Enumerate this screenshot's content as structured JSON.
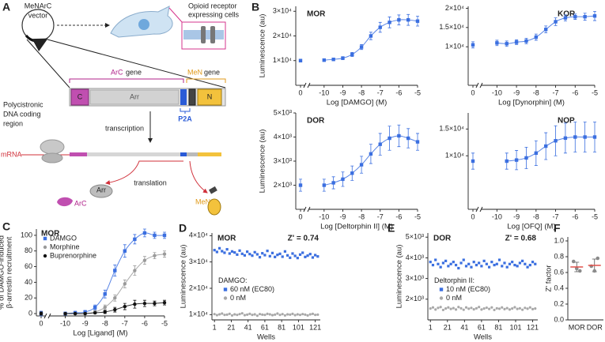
{
  "panel_labels": [
    "A",
    "B",
    "C",
    "D",
    "E",
    "F"
  ],
  "diagram": {
    "vector_label": [
      "MeNArC",
      "vector"
    ],
    "cells_label": [
      "Opioid receptor",
      "expressing cells"
    ],
    "dna_label": [
      "Polycistronic",
      "DNA coding",
      "region"
    ],
    "arc_gene": [
      "ArC",
      "gene"
    ],
    "men_gene": [
      "MeN",
      "gene"
    ],
    "segments": [
      "C",
      "Arr",
      "N"
    ],
    "p2a": "P2A",
    "transcription": "transcription",
    "mrna": "mRNA",
    "translation": "translation",
    "arr": "Arr",
    "arc": "ArC",
    "men": "MeN"
  },
  "chart_data": [
    {
      "type": "line",
      "title": "MOR",
      "xlabel": "Log [DAMGO] (M)",
      "ylabel": "Luminescence (au)",
      "x": [
        0,
        -10,
        -9.5,
        -9,
        -8.5,
        -8,
        -7.5,
        -7,
        -6.5,
        -6,
        -5.5,
        -5
      ],
      "series": [
        {
          "color": "#3b6fe0",
          "marker": "square",
          "values": [
            10000,
            10200,
            10500,
            11000,
            12500,
            15500,
            20000,
            23500,
            25500,
            26500,
            26500,
            26000
          ],
          "errors": [
            600,
            500,
            500,
            600,
            800,
            1000,
            1500,
            2000,
            2200,
            2000,
            2200,
            2000
          ]
        }
      ],
      "xlim": [
        -10.5,
        -5
      ],
      "x_break": true,
      "xticks": [
        0,
        -10,
        -9,
        -8,
        -7,
        -6,
        -5
      ],
      "ylim": [
        0,
        32000
      ],
      "yticks": [
        {
          "value": 10000,
          "label": "1×10⁴"
        },
        {
          "value": 20000,
          "label": "2×10⁴"
        },
        {
          "value": 30000,
          "label": "3×10⁴"
        }
      ]
    },
    {
      "type": "line",
      "title": "KOR",
      "xlabel": "Log [Dynorphin] (M)",
      "x": [
        0,
        -10,
        -9.5,
        -9,
        -8.5,
        -8,
        -7.5,
        -7,
        -6.5,
        -6,
        -5.5,
        -5
      ],
      "series": [
        {
          "color": "#3b6fe0",
          "marker": "square",
          "values": [
            10500,
            11000,
            10800,
            11200,
            11500,
            12500,
            14500,
            16500,
            17500,
            17800,
            17800,
            18000
          ],
          "errors": [
            800,
            700,
            700,
            600,
            700,
            800,
            900,
            1000,
            800,
            700,
            900,
            1200
          ]
        }
      ],
      "xlim": [
        -10.5,
        -5
      ],
      "x_break": true,
      "xticks": [
        0,
        -10,
        -9,
        -8,
        -7,
        -6,
        -5
      ],
      "ylim": [
        0,
        20500
      ],
      "yticks": [
        {
          "value": 10000,
          "label": "1×10⁴"
        },
        {
          "value": 15000,
          "label": "1.5×10⁴"
        },
        {
          "value": 20000,
          "label": "2×10⁴"
        }
      ]
    },
    {
      "type": "line",
      "title": "DOR",
      "xlabel": "Log [Deltorphin II] (M)",
      "ylabel": "Luminescence (au)",
      "x": [
        0,
        -10,
        -9.5,
        -9,
        -8.5,
        -8,
        -7.5,
        -7,
        -6.5,
        -6,
        -5.5,
        -5
      ],
      "series": [
        {
          "color": "#3b6fe0",
          "marker": "square",
          "values": [
            2000,
            2000,
            2100,
            2250,
            2500,
            2850,
            3300,
            3700,
            3950,
            4050,
            3950,
            3800
          ],
          "errors": [
            250,
            250,
            250,
            300,
            300,
            350,
            400,
            450,
            500,
            450,
            400,
            350
          ]
        }
      ],
      "xlim": [
        -10.5,
        -5
      ],
      "x_break": true,
      "xticks": [
        0,
        -10,
        -9,
        -8,
        -7,
        -6,
        -5
      ],
      "ylim": [
        1000,
        5000
      ],
      "yticks": [
        {
          "value": 2000,
          "label": "2×10³"
        },
        {
          "value": 3000,
          "label": "3×10³"
        },
        {
          "value": 4000,
          "label": "4×10³"
        },
        {
          "value": 5000,
          "label": "5×10³"
        }
      ]
    },
    {
      "type": "line",
      "title": "NOP",
      "xlabel": "Log [OFQ] (M)",
      "x": [
        0,
        -9.5,
        -9,
        -8.5,
        -8,
        -7.5,
        -7,
        -6.5,
        -6,
        -5.5,
        -5
      ],
      "series": [
        {
          "color": "#3b6fe0",
          "marker": "square",
          "values": [
            9000,
            9000,
            9200,
            9600,
            10500,
            11800,
            12800,
            13300,
            13500,
            13500,
            13500
          ],
          "errors": [
            1500,
            1500,
            1800,
            2000,
            2300,
            2500,
            2800,
            2800,
            2800,
            2800,
            2800
          ]
        }
      ],
      "xlim": [
        -10.5,
        -5
      ],
      "x_break": true,
      "xticks": [
        0,
        -10,
        -9,
        -8,
        -7,
        -6,
        -5
      ],
      "ylim": [
        0,
        18000
      ],
      "yticks": [
        {
          "value": 10000,
          "label": "1×10⁴"
        },
        {
          "value": 15000,
          "label": "1.5×10⁴"
        }
      ]
    },
    {
      "type": "line",
      "title": "MOR",
      "xlabel": "Log [Ligand] (M)",
      "ylabel": [
        "% of DAMGO-induced",
        "β-arrestin recruitment"
      ],
      "legend": "upper left",
      "x": [
        0,
        -10,
        -9.5,
        -9,
        -8.5,
        -8,
        -7.5,
        -7,
        -6.5,
        -6,
        -5.5,
        -5
      ],
      "series": [
        {
          "name": "DAMGO",
          "color": "#3b6fe0",
          "marker": "square",
          "values": [
            0,
            0,
            1,
            2,
            8,
            25,
            55,
            80,
            95,
            103,
            100,
            100
          ],
          "errors": [
            3,
            2,
            2,
            2,
            3,
            5,
            7,
            8,
            6,
            5,
            4,
            4
          ]
        },
        {
          "name": "Morphine",
          "color": "#9a9a9a",
          "marker": "circle",
          "values": [
            0,
            0,
            0,
            0,
            2,
            8,
            20,
            38,
            55,
            68,
            74,
            76
          ],
          "errors": [
            2,
            1,
            1,
            1,
            2,
            3,
            4,
            5,
            6,
            5,
            4,
            4
          ]
        },
        {
          "name": "Buprenorphine",
          "color": "#111111",
          "marker": "circle",
          "values": [
            0,
            0,
            0,
            0,
            1,
            2,
            5,
            9,
            12,
            13,
            13,
            14
          ],
          "errors": [
            2,
            1,
            1,
            1,
            1,
            2,
            3,
            4,
            5,
            4,
            3,
            3
          ]
        }
      ],
      "xlim": [
        -10.5,
        -5
      ],
      "x_break": true,
      "xticks": [
        0,
        -10,
        -9,
        -8,
        -7,
        -6,
        -5
      ],
      "ylim": [
        -3,
        108
      ],
      "yticks": [
        0,
        20,
        40,
        60,
        80,
        100
      ]
    },
    {
      "type": "scatter",
      "title": "MOR",
      "annotation": "Z' = 0.74",
      "xlabel": "Wells",
      "ylabel": "Luminescence (au)",
      "legend": "center left",
      "legend_title": "DAMGO:",
      "x": [
        1,
        4,
        7,
        10,
        13,
        16,
        19,
        22,
        25,
        28,
        31,
        34,
        37,
        40,
        43,
        46,
        49,
        52,
        55,
        58,
        61,
        64,
        67,
        70,
        73,
        76,
        79,
        82,
        85,
        88,
        91,
        94,
        97,
        100,
        103,
        106,
        109,
        112,
        115,
        118,
        121,
        124
      ],
      "series": [
        {
          "name": "60 nM (EC80)",
          "color": "#3b6fe0",
          "marker": "square",
          "values": [
            34500,
            33800,
            35200,
            34100,
            33500,
            34800,
            33200,
            34000,
            33600,
            32800,
            34300,
            33100,
            32500,
            33900,
            33000,
            32400,
            33700,
            32900,
            31800,
            33300,
            32600,
            34200,
            32200,
            33400,
            31900,
            32700,
            33100,
            32000,
            34000,
            32500,
            31600,
            33200,
            32300,
            31500,
            32800,
            33500,
            31900,
            32400,
            33000,
            31700,
            32600,
            32100
          ]
        },
        {
          "name": "0 nM",
          "color": "#a8a8a8",
          "marker": "circle",
          "values": [
            10200,
            9800,
            10100,
            10400,
            9900,
            10000,
            10300,
            9700,
            10100,
            9900,
            10200,
            10500,
            9800,
            10000,
            10300,
            9900,
            10100,
            9600,
            10200,
            10000,
            9900,
            10300,
            10100,
            9800,
            10000,
            10400,
            9900,
            10200,
            9700,
            10100,
            10000,
            10300,
            9800,
            10100,
            9900,
            10200,
            10000,
            9700,
            10100,
            10300,
            9900,
            10000
          ]
        }
      ],
      "xlim": [
        -2,
        127
      ],
      "xticks": [
        1,
        21,
        41,
        61,
        81,
        101,
        121
      ],
      "ylim": [
        8000,
        41000
      ],
      "yticks": [
        {
          "value": 10000,
          "label": "1×10⁴"
        },
        {
          "value": 20000,
          "label": "2×10⁴"
        },
        {
          "value": 30000,
          "label": "3×10⁴"
        },
        {
          "value": 40000,
          "label": "4×10⁴"
        }
      ]
    },
    {
      "type": "scatter",
      "title": "DOR",
      "annotation": "Z' = 0.68",
      "xlabel": "Wells",
      "ylabel": "Luminescence (au)",
      "legend": "center left",
      "legend_title": "Deltorphin II:",
      "x": [
        1,
        4,
        7,
        10,
        13,
        16,
        19,
        22,
        25,
        28,
        31,
        34,
        37,
        40,
        43,
        46,
        49,
        52,
        55,
        58,
        61,
        64,
        67,
        70,
        73,
        76,
        79,
        82,
        85,
        88,
        91,
        94,
        97,
        100,
        103,
        106,
        109,
        112,
        115,
        118,
        121,
        124
      ],
      "series": [
        {
          "name": "10 nM (EC80)",
          "color": "#3b6fe0",
          "marker": "square",
          "values": [
            3800,
            3650,
            3900,
            3700,
            3550,
            3750,
            3850,
            3600,
            3700,
            3800,
            3650,
            3500,
            3750,
            3900,
            3600,
            3700,
            3550,
            3800,
            3650,
            3750,
            3600,
            3850,
            3700,
            3550,
            3800,
            3650,
            3700,
            3900,
            3600,
            3750,
            3550,
            3700,
            3800,
            3650,
            3600,
            3750,
            3850,
            3700,
            3550,
            3650,
            3800,
            3700
          ]
        },
        {
          "name": "0 nM",
          "color": "#a8a8a8",
          "marker": "circle",
          "values": [
            1550,
            1600,
            1500,
            1580,
            1620,
            1480,
            1550,
            1600,
            1530,
            1570,
            1500,
            1620,
            1560,
            1490,
            1600,
            1540,
            1580,
            1510,
            1560,
            1620,
            1500,
            1550,
            1590,
            1530,
            1600,
            1480,
            1560,
            1540,
            1600,
            1520,
            1570,
            1500,
            1550,
            1610,
            1530,
            1560,
            1490,
            1580,
            1540,
            1600,
            1520,
            1550
          ]
        }
      ],
      "xlim": [
        -2,
        127
      ],
      "xticks": [
        1,
        21,
        41,
        61,
        81,
        101,
        121
      ],
      "ylim": [
        1000,
        5200
      ],
      "yticks": [
        {
          "value": 2000,
          "label": "2×10³"
        },
        {
          "value": 3000,
          "label": "3×10³"
        },
        {
          "value": 4000,
          "label": "4×10³"
        },
        {
          "value": 5000,
          "label": "5×10³"
        }
      ]
    },
    {
      "type": "dot",
      "ylabel": "Z' factor",
      "categories": [
        "MOR",
        "DOR"
      ],
      "values": [
        [
          0.74,
          0.62,
          0.65
        ],
        [
          0.68,
          0.78,
          0.62
        ]
      ],
      "means": [
        0.67,
        0.69
      ],
      "errors": [
        0.06,
        0.08
      ],
      "color": "#8a8a8a",
      "mean_color": "#e0504a",
      "ylim": [
        0,
        1.05
      ],
      "yticks": [
        {
          "value": 0,
          "label": "0.0"
        },
        0.2,
        0.4,
        0.6,
        0.8,
        {
          "value": 1,
          "label": "1.0"
        }
      ]
    }
  ]
}
